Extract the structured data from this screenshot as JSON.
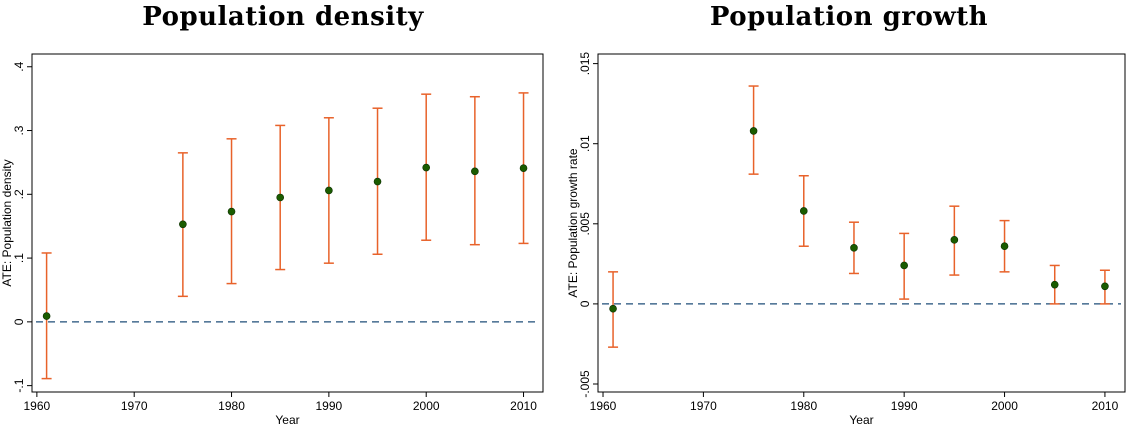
{
  "chart_data": [
    {
      "type": "scatter",
      "title": "Population density",
      "xlabel": "Year",
      "ylabel": "ATE: Population density",
      "xlim": [
        1959.5,
        2012
      ],
      "ylim": [
        -0.11,
        0.42
      ],
      "xticks": [
        1960,
        1970,
        1980,
        1990,
        2000,
        2010
      ],
      "xtick_labels": [
        "1960",
        "1970",
        "1980",
        "1990",
        "2000",
        "2010"
      ],
      "yticks": [
        -0.1,
        0,
        0.1,
        0.2,
        0.3,
        0.4
      ],
      "ytick_labels": [
        "-.1",
        "0",
        ".1",
        ".2",
        ".3",
        ".4"
      ],
      "reference_line": 0,
      "grid": false,
      "series": [
        {
          "x": [
            1961,
            1975,
            1980,
            1985,
            1990,
            1995,
            2000,
            2005,
            2010
          ],
          "y": [
            0.009,
            0.153,
            0.173,
            0.195,
            0.206,
            0.22,
            0.242,
            0.236,
            0.241
          ],
          "ci_low": [
            -0.089,
            0.04,
            0.06,
            0.082,
            0.092,
            0.106,
            0.128,
            0.121,
            0.123
          ],
          "ci_high": [
            0.108,
            0.265,
            0.287,
            0.308,
            0.32,
            0.335,
            0.357,
            0.353,
            0.359
          ],
          "marker_color": "#1a5c00",
          "ci_color": "#e8622a"
        }
      ],
      "reference_line_color": "#1f4e79"
    },
    {
      "type": "scatter",
      "title": "Population growth",
      "xlabel": "Year",
      "ylabel": "ATE: Population growth rate",
      "xlim": [
        1959.5,
        2012
      ],
      "ylim": [
        -0.0055,
        0.0156
      ],
      "xticks": [
        1960,
        1970,
        1980,
        1990,
        2000,
        2010
      ],
      "xtick_labels": [
        "1960",
        "1970",
        "1980",
        "1990",
        "2000",
        "2010"
      ],
      "yticks": [
        -0.005,
        0,
        0.005,
        0.01,
        0.015
      ],
      "ytick_labels": [
        "-.005",
        "0",
        ".005",
        ".01",
        ".015"
      ],
      "reference_line": 0,
      "grid": false,
      "series": [
        {
          "x": [
            1961,
            1975,
            1980,
            1985,
            1990,
            1995,
            2000,
            2005,
            2010
          ],
          "y": [
            -0.0003,
            0.0108,
            0.0058,
            0.0035,
            0.0024,
            0.004,
            0.0036,
            0.0012,
            0.0011
          ],
          "ci_low": [
            -0.0027,
            0.0081,
            0.0036,
            0.0019,
            0.0003,
            0.0018,
            0.002,
            0.0,
            0.0
          ],
          "ci_high": [
            0.002,
            0.0136,
            0.008,
            0.0051,
            0.0044,
            0.0061,
            0.0052,
            0.0024,
            0.0021
          ],
          "marker_color": "#1a5c00",
          "ci_color": "#e8622a"
        }
      ],
      "reference_line_color": "#1f4e79"
    }
  ]
}
